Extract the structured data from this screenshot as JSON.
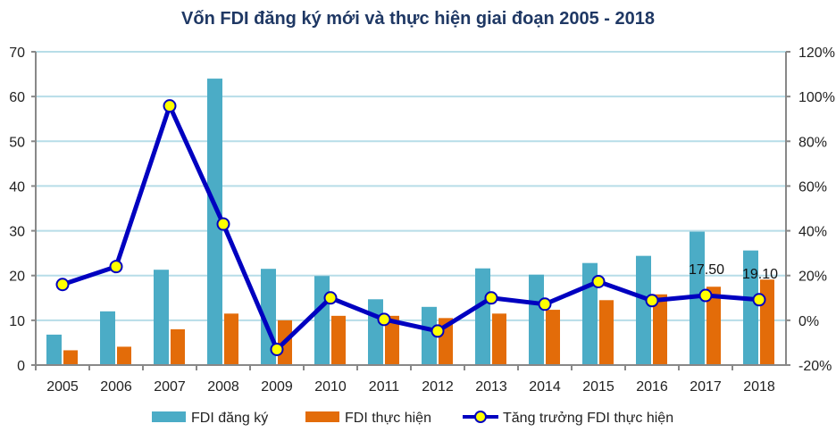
{
  "chart_data": {
    "type": "bar",
    "title": "Vốn FDI đăng ký mới và thực hiện giai đoạn 2005 - 2018",
    "categories": [
      "2005",
      "2006",
      "2007",
      "2008",
      "2009",
      "2010",
      "2011",
      "2012",
      "2013",
      "2014",
      "2015",
      "2016",
      "2017",
      "2018"
    ],
    "ylim": [
      0,
      70
    ],
    "yticks": [
      0,
      10,
      20,
      30,
      40,
      50,
      60,
      70
    ],
    "y2lim": [
      -20,
      120
    ],
    "y2ticks": [
      "-20%",
      "0%",
      "20%",
      "40%",
      "60%",
      "80%",
      "100%",
      "120%"
    ],
    "y2tick_values": [
      -20,
      0,
      20,
      40,
      60,
      80,
      100,
      120
    ],
    "grid": true,
    "legend_position": "bottom",
    "series": [
      {
        "name": "FDI đăng ký",
        "type": "bar",
        "axis": "left",
        "color": "#4bacc6",
        "values": [
          6.8,
          12.0,
          21.3,
          64.0,
          21.5,
          19.9,
          14.7,
          13.0,
          21.6,
          20.2,
          22.8,
          24.4,
          29.8,
          25.6
        ]
      },
      {
        "name": "FDI thực hiện",
        "type": "bar",
        "axis": "left",
        "color": "#e36c09",
        "values": [
          3.3,
          4.1,
          8.0,
          11.5,
          10.0,
          11.0,
          11.0,
          10.5,
          11.5,
          12.35,
          14.5,
          15.8,
          17.5,
          19.1
        ]
      },
      {
        "name": "Tăng trưởng FDI thực hiện",
        "type": "line",
        "axis": "right",
        "color": "#0000c0",
        "marker_color": "#ffff00",
        "values": [
          16,
          24,
          95.8,
          43,
          -13,
          10,
          0.4,
          -4.8,
          10,
          7.2,
          17.3,
          8.8,
          11.1,
          9.2
        ]
      }
    ],
    "annotations": [
      {
        "category": "2017",
        "text": "17.50"
      },
      {
        "category": "2018",
        "text": "19.10"
      }
    ]
  }
}
